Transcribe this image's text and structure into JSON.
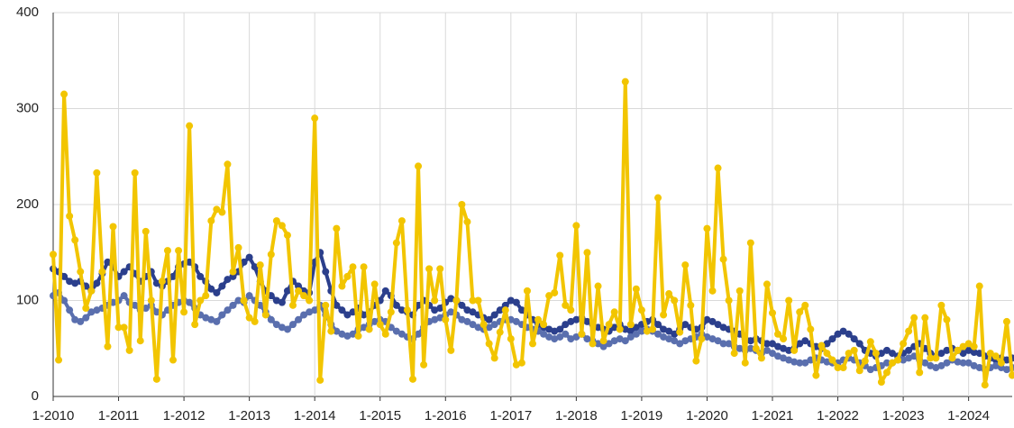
{
  "chart_data": {
    "type": "line",
    "categories": [
      "1-2010",
      null,
      null,
      null,
      null,
      null,
      null,
      null,
      null,
      null,
      null,
      null,
      "1-2011",
      null,
      null,
      null,
      null,
      null,
      null,
      null,
      null,
      null,
      null,
      null,
      "1-2012",
      null,
      null,
      null,
      null,
      null,
      null,
      null,
      null,
      null,
      null,
      null,
      "1-2013",
      null,
      null,
      null,
      null,
      null,
      null,
      null,
      null,
      null,
      null,
      null,
      "1-2014",
      null,
      null,
      null,
      null,
      null,
      null,
      null,
      null,
      null,
      null,
      null,
      "1-2015",
      null,
      null,
      null,
      null,
      null,
      null,
      null,
      null,
      null,
      null,
      null,
      "1-2016",
      null,
      null,
      null,
      null,
      null,
      null,
      null,
      null,
      null,
      null,
      null,
      "1-2017",
      null,
      null,
      null,
      null,
      null,
      null,
      null,
      null,
      null,
      null,
      null,
      "1-2018",
      null,
      null,
      null,
      null,
      null,
      null,
      null,
      null,
      null,
      null,
      null,
      "1-2019",
      null,
      null,
      null,
      null,
      null,
      null,
      null,
      null,
      null,
      null,
      null,
      "1-2020",
      null,
      null,
      null,
      null,
      null,
      null,
      null,
      null,
      null,
      null,
      null,
      "1-2021",
      null,
      null,
      null,
      null,
      null,
      null,
      null,
      null,
      null,
      null,
      null,
      "1-2022",
      null,
      null,
      null,
      null,
      null,
      null,
      null,
      null,
      null,
      null,
      null,
      "1-2023",
      null,
      null,
      null,
      null,
      null,
      null,
      null,
      null,
      null,
      null,
      null,
      "1-2024",
      null,
      null,
      null,
      null,
      null,
      null,
      null,
      null
    ],
    "series": [
      {
        "color": "#2b3f8c",
        "values": [
          133,
          130,
          125,
          120,
          118,
          120,
          115,
          110,
          118,
          128,
          140,
          135,
          125,
          130,
          135,
          128,
          120,
          125,
          130,
          118,
          115,
          120,
          125,
          135,
          138,
          140,
          135,
          125,
          120,
          112,
          108,
          115,
          122,
          125,
          130,
          140,
          145,
          135,
          120,
          110,
          105,
          100,
          98,
          110,
          120,
          115,
          110,
          108,
          140,
          150,
          130,
          110,
          95,
          90,
          85,
          88,
          92,
          85,
          88,
          95,
          100,
          110,
          105,
          95,
          90,
          88,
          85,
          95,
          100,
          95,
          90,
          92,
          98,
          102,
          100,
          95,
          90,
          88,
          85,
          82,
          80,
          85,
          90,
          95,
          100,
          98,
          90,
          85,
          80,
          75,
          72,
          70,
          68,
          70,
          75,
          78,
          80,
          82,
          78,
          75,
          72,
          70,
          68,
          72,
          75,
          70,
          68,
          72,
          75,
          78,
          80,
          75,
          70,
          68,
          65,
          70,
          75,
          72,
          70,
          72,
          80,
          78,
          75,
          72,
          70,
          68,
          65,
          60,
          58,
          60,
          58,
          55,
          55,
          52,
          50,
          48,
          50,
          55,
          58,
          55,
          52,
          50,
          55,
          60,
          65,
          68,
          65,
          60,
          55,
          48,
          45,
          42,
          45,
          48,
          45,
          42,
          45,
          48,
          52,
          55,
          50,
          45,
          42,
          45,
          48,
          50,
          48,
          45,
          48,
          46,
          45,
          42,
          40,
          38,
          40,
          38,
          40
        ]
      },
      {
        "color": "#5a6fae",
        "values": [
          105,
          108,
          100,
          90,
          80,
          78,
          82,
          88,
          90,
          92,
          95,
          98,
          100,
          105,
          98,
          95,
          90,
          92,
          95,
          88,
          85,
          90,
          95,
          98,
          100,
          98,
          92,
          85,
          82,
          80,
          78,
          85,
          90,
          95,
          100,
          98,
          105,
          100,
          95,
          88,
          80,
          75,
          72,
          70,
          75,
          80,
          85,
          88,
          90,
          95,
          85,
          75,
          68,
          65,
          63,
          65,
          70,
          72,
          75,
          78,
          80,
          78,
          72,
          68,
          65,
          62,
          60,
          65,
          72,
          78,
          80,
          82,
          85,
          88,
          85,
          80,
          78,
          75,
          72,
          70,
          72,
          75,
          78,
          80,
          80,
          78,
          75,
          72,
          70,
          68,
          65,
          62,
          60,
          62,
          65,
          60,
          62,
          65,
          60,
          58,
          55,
          52,
          55,
          58,
          60,
          58,
          62,
          65,
          68,
          70,
          68,
          65,
          62,
          60,
          58,
          55,
          58,
          60,
          62,
          65,
          62,
          60,
          58,
          55,
          55,
          52,
          50,
          48,
          50,
          48,
          45,
          48,
          45,
          42,
          40,
          38,
          36,
          35,
          35,
          38,
          40,
          38,
          36,
          35,
          35,
          38,
          40,
          38,
          35,
          32,
          28,
          30,
          32,
          35,
          35,
          38,
          38,
          40,
          42,
          38,
          35,
          32,
          30,
          32,
          35,
          38,
          36,
          35,
          35,
          32,
          30,
          28,
          30,
          32,
          30,
          28,
          30
        ]
      },
      {
        "color": "#f2c500",
        "values": [
          148,
          38,
          315,
          188,
          163,
          130,
          92,
          110,
          233,
          130,
          52,
          177,
          72,
          72,
          48,
          233,
          58,
          172,
          100,
          18,
          120,
          152,
          38,
          152,
          88,
          282,
          75,
          100,
          105,
          183,
          195,
          192,
          242,
          130,
          155,
          100,
          82,
          78,
          137,
          85,
          148,
          183,
          178,
          168,
          95,
          110,
          105,
          100,
          290,
          17,
          95,
          68,
          175,
          115,
          125,
          135,
          63,
          135,
          70,
          117,
          75,
          65,
          88,
          160,
          183,
          90,
          18,
          240,
          33,
          133,
          100,
          133,
          80,
          48,
          100,
          200,
          182,
          100,
          100,
          75,
          55,
          40,
          67,
          90,
          60,
          33,
          35,
          110,
          55,
          80,
          75,
          105,
          108,
          147,
          95,
          90,
          178,
          65,
          150,
          55,
          115,
          58,
          75,
          88,
          70,
          328,
          75,
          112,
          90,
          68,
          70,
          207,
          85,
          107,
          100,
          67,
          137,
          95,
          37,
          60,
          175,
          110,
          238,
          143,
          100,
          45,
          110,
          35,
          160,
          50,
          40,
          117,
          87,
          65,
          60,
          100,
          48,
          88,
          95,
          70,
          22,
          53,
          45,
          38,
          30,
          30,
          45,
          48,
          27,
          37,
          57,
          45,
          15,
          25,
          35,
          38,
          55,
          68,
          82,
          25,
          82,
          40,
          40,
          95,
          80,
          40,
          48,
          52,
          55,
          52,
          115,
          12,
          45,
          42,
          35,
          78,
          22
        ]
      }
    ],
    "ylim": [
      0,
      400
    ],
    "yticks": [
      0,
      100,
      200,
      300,
      400
    ],
    "grid": true
  }
}
